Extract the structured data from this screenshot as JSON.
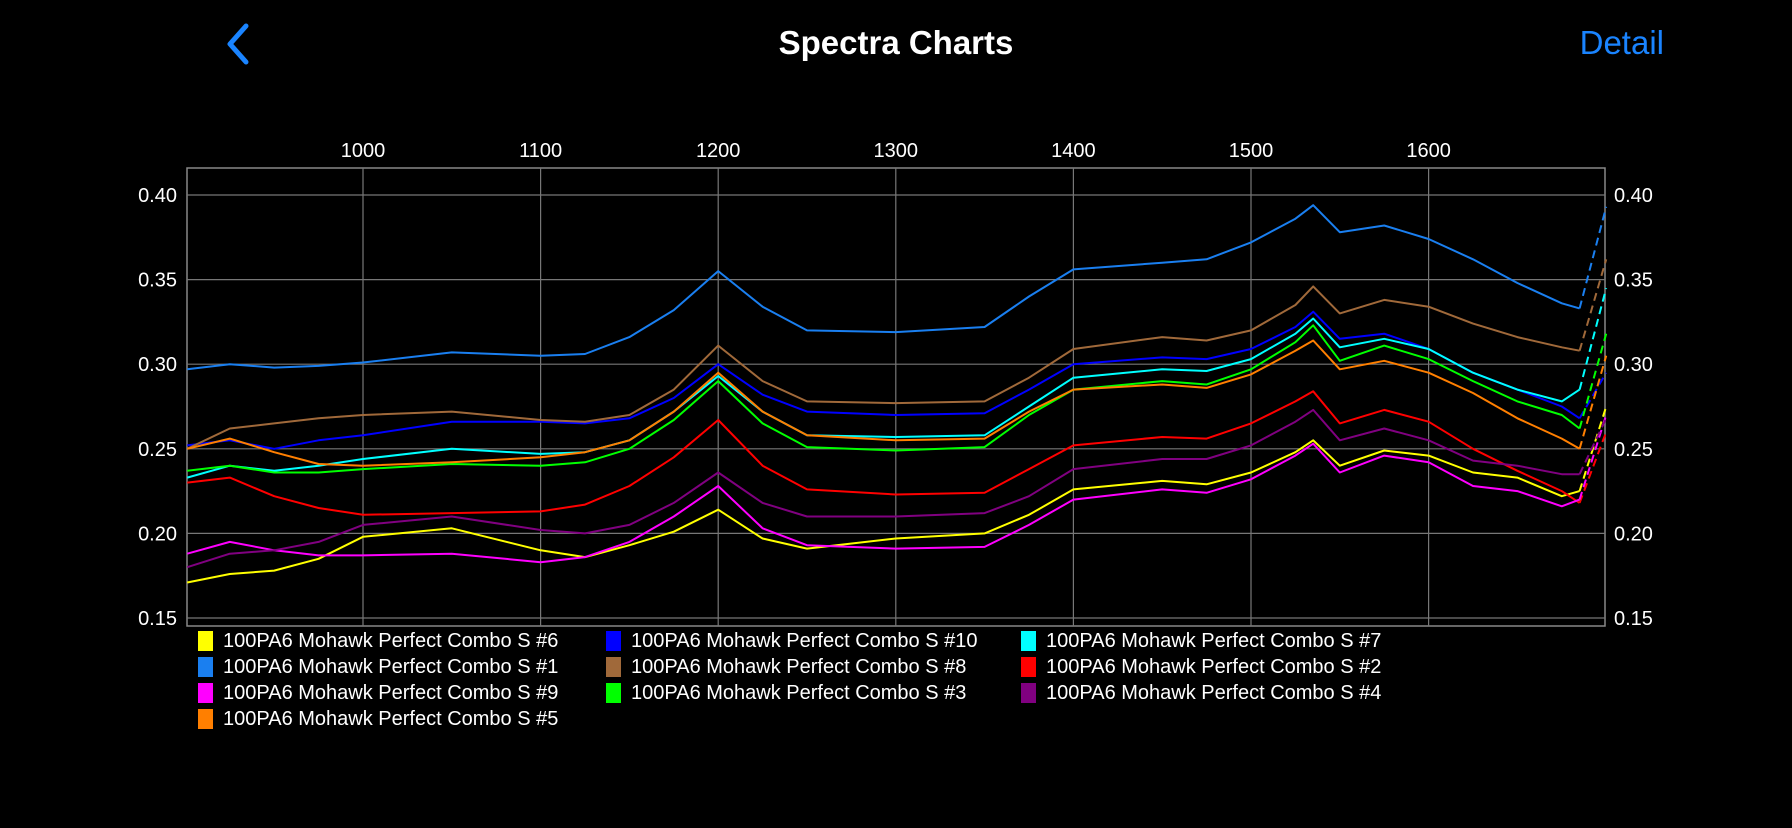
{
  "header": {
    "title": "Spectra Charts",
    "back_icon": "chevron-left-icon",
    "detail_label": "Detail",
    "accent_color": "#1a84ff"
  },
  "chart_data": {
    "type": "line",
    "title": "",
    "xlabel": "",
    "ylabel": "",
    "xlim": [
      901,
      1700
    ],
    "ylim": [
      0.15,
      0.415
    ],
    "x_ticks": [
      "1000",
      "1100",
      "1200",
      "1300",
      "1400",
      "1500",
      "1600"
    ],
    "y_ticks": [
      "0.40",
      "0.35",
      "0.30",
      "0.25",
      "0.20",
      "0.15"
    ],
    "x_axis_position": "top",
    "y_axis_position": "both",
    "grid": true,
    "legend_position": "bottom",
    "x": [
      901,
      925,
      950,
      975,
      1000,
      1050,
      1100,
      1125,
      1150,
      1175,
      1200,
      1225,
      1250,
      1300,
      1350,
      1375,
      1400,
      1450,
      1475,
      1500,
      1525,
      1535,
      1550,
      1575,
      1600,
      1625,
      1650,
      1675,
      1685,
      1700
    ],
    "series": [
      {
        "name": "100PA6 Mohawk Perfect Combo S #6",
        "color": "#ffff00",
        "values": [
          0.171,
          0.176,
          0.178,
          0.185,
          0.198,
          0.203,
          0.19,
          0.186,
          0.193,
          0.201,
          0.214,
          0.197,
          0.191,
          0.197,
          0.2,
          0.211,
          0.226,
          0.231,
          0.229,
          0.236,
          0.248,
          0.255,
          0.24,
          0.249,
          0.246,
          0.236,
          0.233,
          0.222,
          0.225,
          0.275
        ]
      },
      {
        "name": "100PA6 Mohawk Perfect Combo S #10",
        "color": "#0000ff",
        "values": [
          0.252,
          0.255,
          0.25,
          0.255,
          0.258,
          0.266,
          0.266,
          0.265,
          0.268,
          0.28,
          0.3,
          0.282,
          0.272,
          0.27,
          0.271,
          0.285,
          0.3,
          0.304,
          0.303,
          0.309,
          0.322,
          0.331,
          0.315,
          0.318,
          0.309,
          0.295,
          0.285,
          0.275,
          0.268,
          0.295
        ]
      },
      {
        "name": "100PA6 Mohawk Perfect Combo S #7",
        "color": "#00ffff",
        "values": [
          0.233,
          0.24,
          0.237,
          0.24,
          0.244,
          0.25,
          0.247,
          0.248,
          0.255,
          0.272,
          0.293,
          0.272,
          0.258,
          0.257,
          0.258,
          0.275,
          0.292,
          0.297,
          0.296,
          0.303,
          0.318,
          0.327,
          0.31,
          0.315,
          0.309,
          0.295,
          0.285,
          0.278,
          0.285,
          0.345
        ]
      },
      {
        "name": "100PA6 Mohawk Perfect Combo S #1",
        "color": "#1a7ff0",
        "values": [
          0.297,
          0.3,
          0.298,
          0.299,
          0.301,
          0.307,
          0.305,
          0.306,
          0.316,
          0.332,
          0.355,
          0.334,
          0.32,
          0.319,
          0.322,
          0.34,
          0.356,
          0.36,
          0.362,
          0.372,
          0.386,
          0.394,
          0.378,
          0.382,
          0.374,
          0.362,
          0.348,
          0.336,
          0.333,
          0.393
        ]
      },
      {
        "name": "100PA6 Mohawk Perfect Combo S #8",
        "color": "#a0693a",
        "values": [
          0.25,
          0.262,
          0.265,
          0.268,
          0.27,
          0.272,
          0.267,
          0.266,
          0.27,
          0.285,
          0.311,
          0.29,
          0.278,
          0.277,
          0.278,
          0.292,
          0.309,
          0.316,
          0.314,
          0.32,
          0.335,
          0.346,
          0.33,
          0.338,
          0.334,
          0.324,
          0.316,
          0.31,
          0.308,
          0.362
        ]
      },
      {
        "name": "100PA6 Mohawk Perfect Combo S #2",
        "color": "#ff0000",
        "values": [
          0.23,
          0.233,
          0.222,
          0.215,
          0.211,
          0.212,
          0.213,
          0.217,
          0.228,
          0.245,
          0.267,
          0.24,
          0.226,
          0.223,
          0.224,
          0.238,
          0.252,
          0.257,
          0.256,
          0.265,
          0.278,
          0.284,
          0.265,
          0.273,
          0.266,
          0.25,
          0.237,
          0.225,
          0.218,
          0.26
        ]
      },
      {
        "name": "100PA6 Mohawk Perfect Combo S #9",
        "color": "#ff00ff",
        "values": [
          0.188,
          0.195,
          0.19,
          0.187,
          0.187,
          0.188,
          0.183,
          0.186,
          0.195,
          0.21,
          0.228,
          0.203,
          0.193,
          0.191,
          0.192,
          0.205,
          0.22,
          0.226,
          0.224,
          0.232,
          0.246,
          0.253,
          0.236,
          0.246,
          0.242,
          0.228,
          0.225,
          0.216,
          0.22,
          0.27
        ]
      },
      {
        "name": "100PA6 Mohawk Perfect Combo S #3",
        "color": "#00ff00",
        "values": [
          0.237,
          0.24,
          0.236,
          0.236,
          0.238,
          0.241,
          0.24,
          0.242,
          0.25,
          0.267,
          0.29,
          0.265,
          0.251,
          0.249,
          0.251,
          0.27,
          0.285,
          0.29,
          0.288,
          0.297,
          0.313,
          0.323,
          0.302,
          0.311,
          0.303,
          0.29,
          0.278,
          0.27,
          0.262,
          0.318
        ]
      },
      {
        "name": "100PA6 Mohawk Perfect Combo S #4",
        "color": "#800080",
        "values": [
          0.18,
          0.188,
          0.19,
          0.195,
          0.205,
          0.21,
          0.202,
          0.2,
          0.205,
          0.218,
          0.236,
          0.218,
          0.21,
          0.21,
          0.212,
          0.222,
          0.238,
          0.244,
          0.244,
          0.252,
          0.266,
          0.273,
          0.255,
          0.262,
          0.255,
          0.243,
          0.24,
          0.235,
          0.235,
          0.268
        ]
      },
      {
        "name": "100PA6 Mohawk Perfect Combo S #5",
        "color": "#ff7f00",
        "values": [
          0.25,
          0.256,
          0.248,
          0.241,
          0.24,
          0.242,
          0.245,
          0.248,
          0.255,
          0.272,
          0.295,
          0.272,
          0.258,
          0.255,
          0.256,
          0.272,
          0.285,
          0.288,
          0.286,
          0.294,
          0.308,
          0.314,
          0.297,
          0.302,
          0.295,
          0.283,
          0.268,
          0.256,
          0.25,
          0.305
        ]
      }
    ]
  }
}
